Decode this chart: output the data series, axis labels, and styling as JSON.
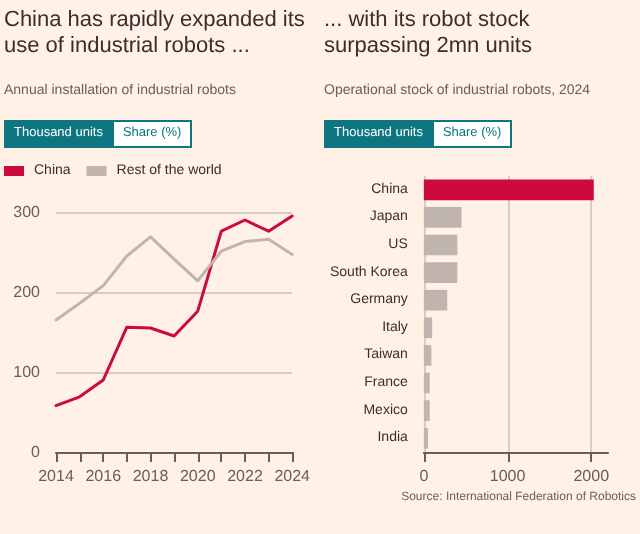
{
  "chart_data": [
    {
      "type": "line",
      "title": "China has rapidly expanded its use of industrial robots ...",
      "subtitle": "Annual installation of industrial robots",
      "annotations": [
        "Thousand units",
        "Share (%)"
      ],
      "x": [
        2014,
        2015,
        2016,
        2017,
        2018,
        2019,
        2020,
        2021,
        2022,
        2023,
        2024
      ],
      "series": [
        {
          "name": "China",
          "color": "#cc0a3f",
          "values": [
            58,
            69,
            90,
            156,
            155,
            145,
            176,
            276,
            290,
            276,
            295
          ]
        },
        {
          "name": "Rest of the world",
          "color": "#c0b5ae",
          "values": [
            165,
            186,
            208,
            245,
            269,
            241,
            214,
            251,
            263,
            266,
            247
          ]
        }
      ],
      "xlim": [
        2014,
        2024
      ],
      "xticks": [
        2014,
        {
          "value": 2015,
          "label": null
        },
        2016,
        {
          "value": 2017,
          "label": null
        },
        2018,
        {
          "value": 2019,
          "label": null
        },
        2020,
        {
          "value": 2021,
          "label": null
        },
        2022,
        {
          "value": 2023,
          "label": null
        },
        2024
      ],
      "ylim": [
        0,
        300
      ],
      "yticks": [
        0,
        100,
        200,
        300
      ],
      "grid": "y",
      "legend": "top left",
      "line_style": "solid"
    },
    {
      "type": "bar",
      "orientation": "horizontal",
      "title": "... with its robot stock surpassing 2mn units",
      "subtitle": "Operational stock of industrial robots, 2024",
      "annotations": [
        "Thousand units",
        "Share (%)",
        "Source: International Federation of Robotics"
      ],
      "categories": [
        "China",
        "Japan",
        "US",
        "South Korea",
        "Germany",
        "Italy",
        "Taiwan",
        "France",
        "Mexico",
        "India"
      ],
      "values": [
        2030,
        450,
        400,
        400,
        280,
        100,
        90,
        70,
        70,
        50
      ],
      "colors": [
        "#cc0a3f",
        "#c0b5ae",
        "#c0b5ae",
        "#c0b5ae",
        "#c0b5ae",
        "#c0b5ae",
        "#c0b5ae",
        "#c0b5ae",
        "#c0b5ae",
        "#c0b5ae"
      ],
      "xlim": [
        0,
        2200
      ],
      "xticks": [
        0,
        1000,
        2000
      ],
      "grid": "x"
    }
  ]
}
